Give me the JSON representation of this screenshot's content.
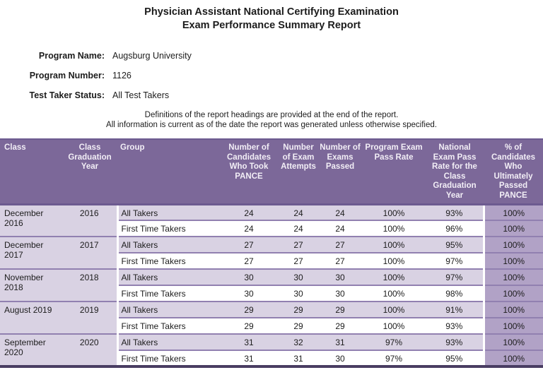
{
  "title": {
    "line1": "Physician Assistant National Certifying Examination",
    "line2": "Exam Performance Summary Report"
  },
  "program_info": [
    {
      "label": "Program Name:",
      "value": "Augsburg University"
    },
    {
      "label": "Program Number:",
      "value": "1126"
    },
    {
      "label": "Test Taker Status:",
      "value": "All Test Takers"
    }
  ],
  "notes": [
    "Definitions of the report headings are provided at the end of the report.",
    "All information is current as of the date the report was generated unless otherwise specified."
  ],
  "table": {
    "columns": [
      "Class",
      "Class Graduation Year",
      "Group",
      "Number of Candidates Who Took PANCE",
      "Number of Exam Attempts",
      "Number of Exams Passed",
      "Program Exam Pass Rate",
      "National Exam Pass Rate for the Class Graduation Year",
      "% of Candidates Who Ultimately Passed PANCE"
    ],
    "groups": [
      {
        "class": "December 2016",
        "year": "2016",
        "rows": [
          {
            "group": "All Takers",
            "candidates": "24",
            "attempts": "24",
            "passed": "24",
            "program_rate": "100%",
            "national_rate": "93%",
            "ultimately_passed": "100%"
          },
          {
            "group": "First Time Takers",
            "candidates": "24",
            "attempts": "24",
            "passed": "24",
            "program_rate": "100%",
            "national_rate": "96%",
            "ultimately_passed": "100%"
          }
        ]
      },
      {
        "class": "December 2017",
        "year": "2017",
        "rows": [
          {
            "group": "All Takers",
            "candidates": "27",
            "attempts": "27",
            "passed": "27",
            "program_rate": "100%",
            "national_rate": "95%",
            "ultimately_passed": "100%"
          },
          {
            "group": "First Time Takers",
            "candidates": "27",
            "attempts": "27",
            "passed": "27",
            "program_rate": "100%",
            "national_rate": "97%",
            "ultimately_passed": "100%"
          }
        ]
      },
      {
        "class": "November 2018",
        "year": "2018",
        "rows": [
          {
            "group": "All Takers",
            "candidates": "30",
            "attempts": "30",
            "passed": "30",
            "program_rate": "100%",
            "national_rate": "97%",
            "ultimately_passed": "100%"
          },
          {
            "group": "First Time Takers",
            "candidates": "30",
            "attempts": "30",
            "passed": "30",
            "program_rate": "100%",
            "national_rate": "98%",
            "ultimately_passed": "100%"
          }
        ]
      },
      {
        "class": "August 2019",
        "year": "2019",
        "rows": [
          {
            "group": "All Takers",
            "candidates": "29",
            "attempts": "29",
            "passed": "29",
            "program_rate": "100%",
            "national_rate": "91%",
            "ultimately_passed": "100%"
          },
          {
            "group": "First Time Takers",
            "candidates": "29",
            "attempts": "29",
            "passed": "29",
            "program_rate": "100%",
            "national_rate": "93%",
            "ultimately_passed": "100%"
          }
        ]
      },
      {
        "class": "September 2020",
        "year": "2020",
        "rows": [
          {
            "group": "All Takers",
            "candidates": "31",
            "attempts": "32",
            "passed": "31",
            "program_rate": "97%",
            "national_rate": "93%",
            "ultimately_passed": "100%"
          },
          {
            "group": "First Time Takers",
            "candidates": "31",
            "attempts": "31",
            "passed": "30",
            "program_rate": "97%",
            "national_rate": "95%",
            "ultimately_passed": "100%"
          }
        ]
      }
    ]
  },
  "colors": {
    "header_bg": "#7c6899",
    "header_text": "#f2eef6",
    "row_lavender": "#d9d2e3",
    "row_white": "#ffffff",
    "last_column_bg": "#b1a2c6",
    "divider": "#9180b0",
    "header_border": "#6c5a90",
    "table_bottom_border": "#493d62"
  }
}
